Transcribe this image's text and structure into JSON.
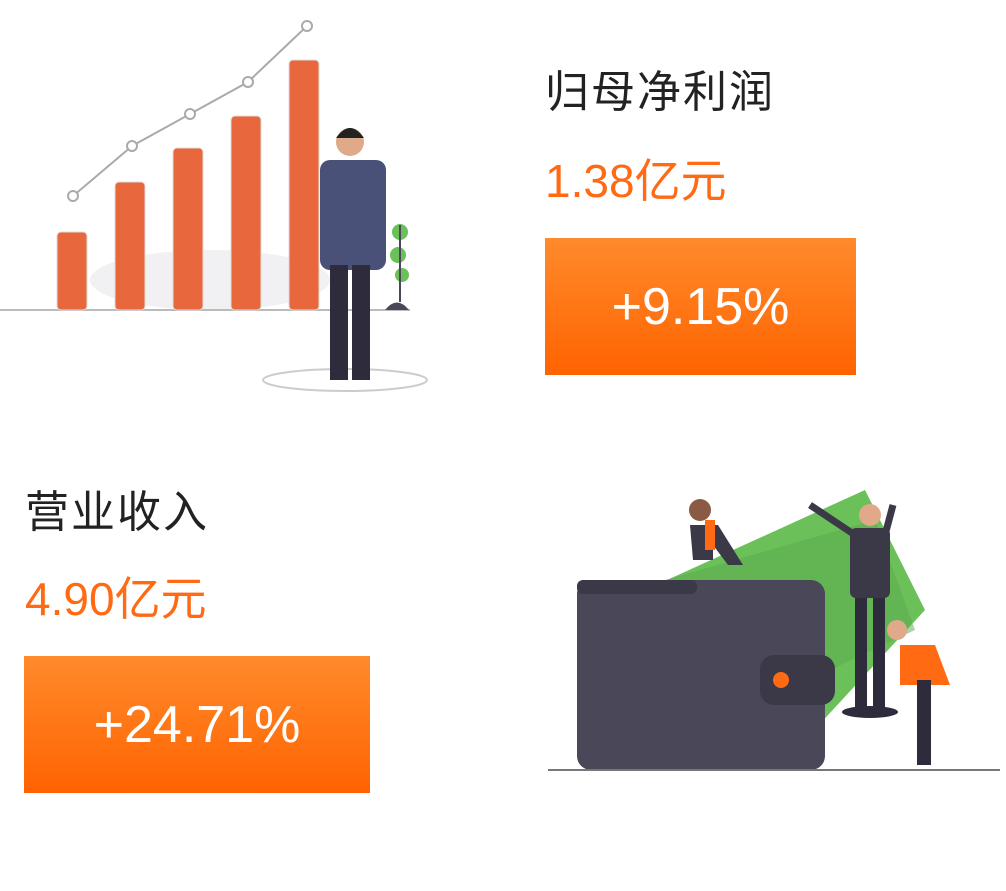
{
  "net_profit": {
    "title": "归母净利润",
    "value": "1.38亿元",
    "change": "+9.15%"
  },
  "revenue": {
    "title": "营业收入",
    "value": "4.90亿元",
    "change": "+24.71%"
  },
  "colors": {
    "accent": "#ff6a13",
    "box_top": "#ff8a2c",
    "box_bottom": "#ff6300",
    "bar": "#e8673c",
    "wallet": "#4a4858",
    "money": "#6cc05a"
  },
  "icons": {
    "top_illustration": "growth-chart-businessman-illustration",
    "bottom_illustration": "wallet-money-people-illustration"
  }
}
